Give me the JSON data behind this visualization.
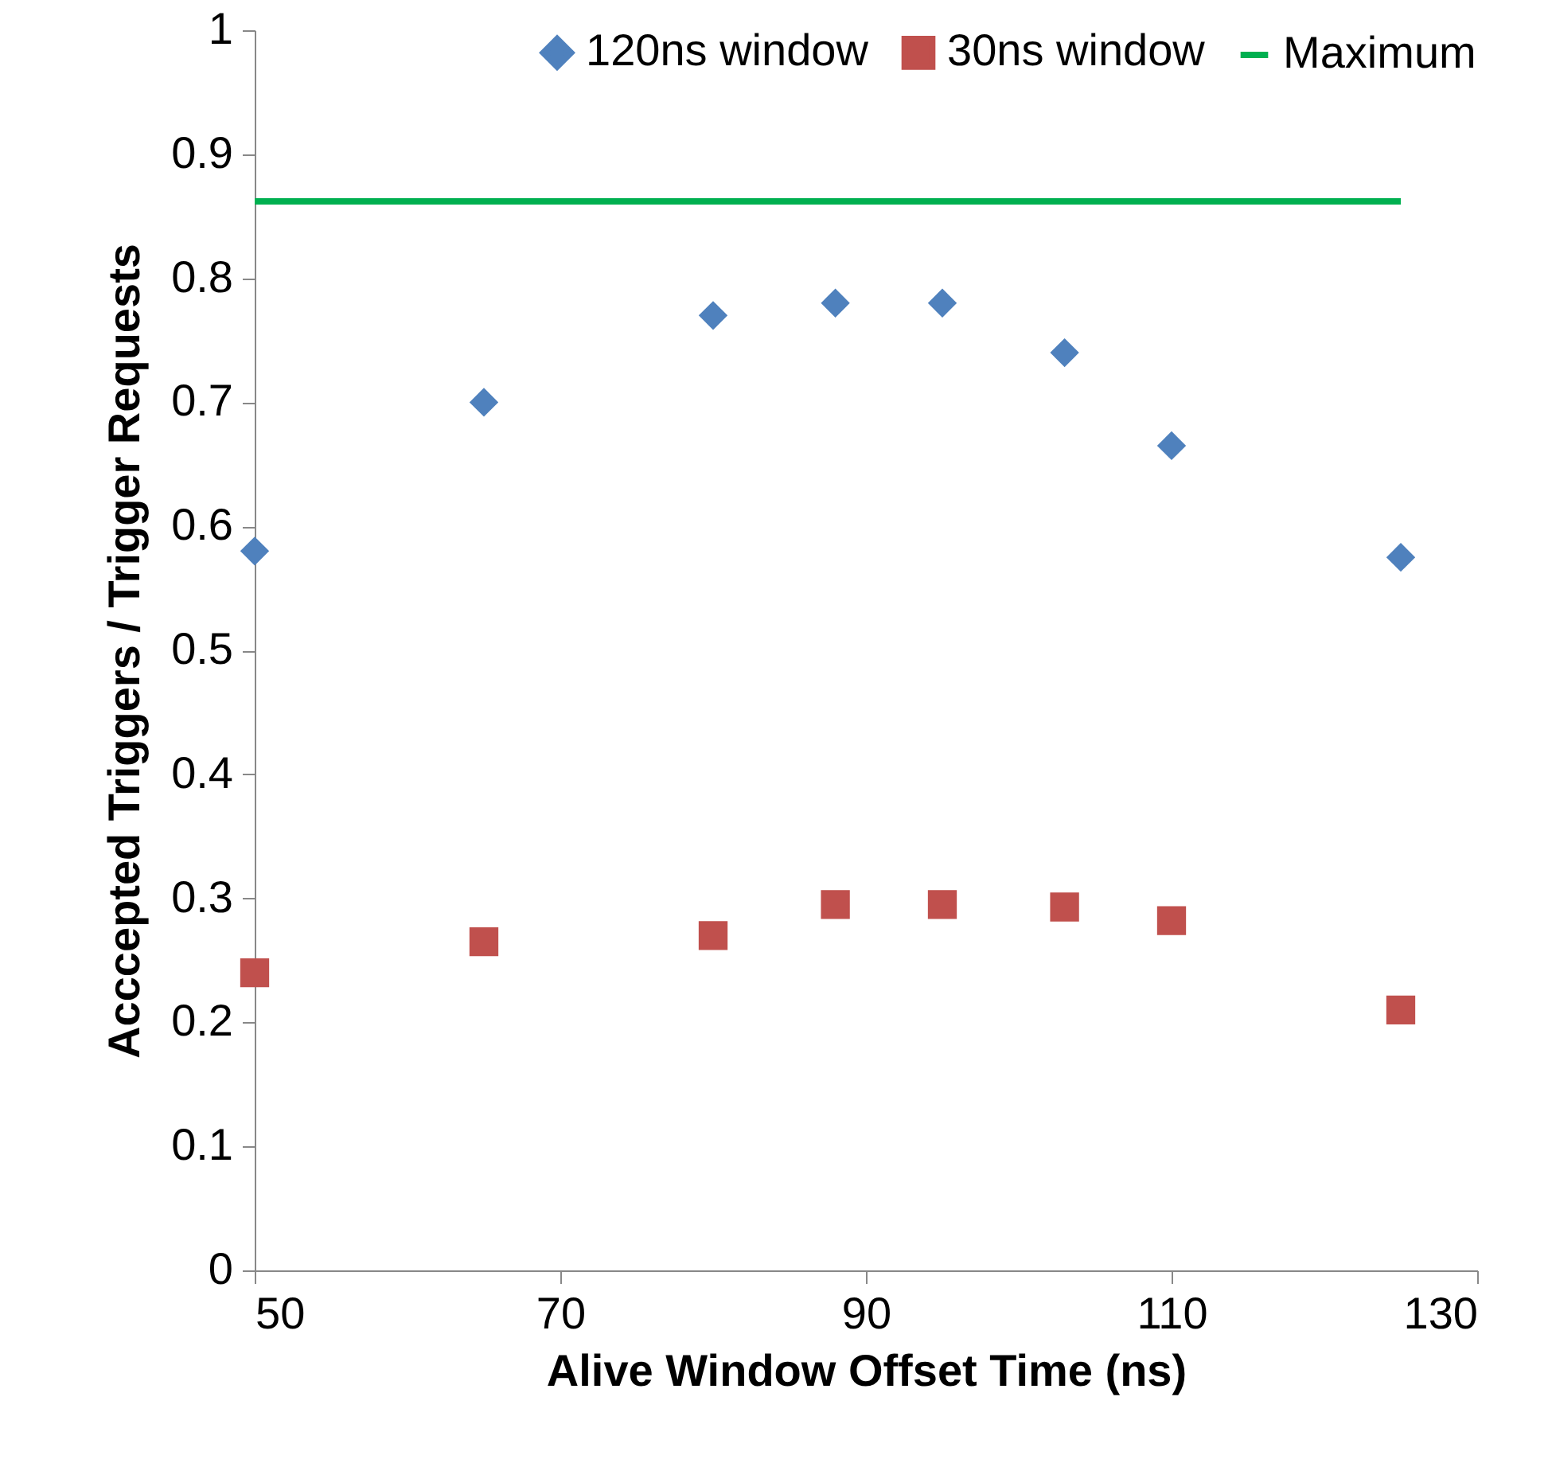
{
  "chart_data": {
    "type": "scatter",
    "xlabel": "Alive Window Offset Time (ns)",
    "ylabel": "Acccepted Triggers / Trigger Requests",
    "x": [
      50,
      65,
      80,
      88,
      95,
      103,
      110,
      125
    ],
    "series": [
      {
        "name": "120ns window",
        "color": "#4f81bd",
        "marker": "diamond",
        "values": [
          0.58,
          0.7,
          0.77,
          0.78,
          0.78,
          0.74,
          0.665,
          0.575
        ]
      },
      {
        "name": "30ns window",
        "color": "#c0504d",
        "marker": "square",
        "values": [
          0.24,
          0.265,
          0.27,
          0.295,
          0.295,
          0.293,
          0.282,
          0.21
        ]
      },
      {
        "name": "Maximum",
        "type": "line",
        "color": "#00b050",
        "marker": "none",
        "x": [
          50,
          125
        ],
        "values": [
          0.862,
          0.862
        ]
      }
    ],
    "xlim": [
      50,
      130
    ],
    "xticks": [
      50,
      70,
      90,
      110,
      130
    ],
    "ylim": [
      0,
      1
    ],
    "yticks": [
      0,
      0.1,
      0.2,
      0.3,
      0.4,
      0.5,
      0.6,
      0.7,
      0.8,
      0.9,
      1
    ],
    "grid": false,
    "legend": "top right"
  }
}
